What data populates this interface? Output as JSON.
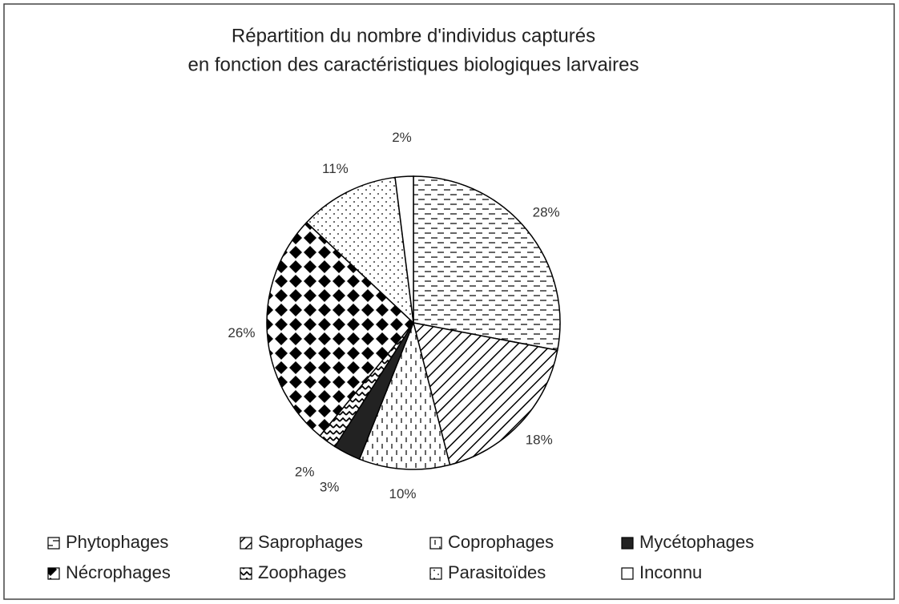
{
  "chart_data": {
    "type": "pie",
    "title": [
      "Répartition du nombre d'individus capturés",
      "en fonction des caractéristiques biologiques larvaires"
    ],
    "categories": [
      "Phytophages",
      "Saprophages",
      "Coprophages",
      "Mycétophages",
      "Zoophages",
      "Nécrophages",
      "Parasitoïdes",
      "Inconnu"
    ],
    "values": [
      28,
      18,
      10,
      3,
      2,
      26,
      11,
      2
    ],
    "value_labels": [
      "28%",
      "18%",
      "10%",
      "3%",
      "2%",
      "26%",
      "11%",
      "2%"
    ]
  }
}
